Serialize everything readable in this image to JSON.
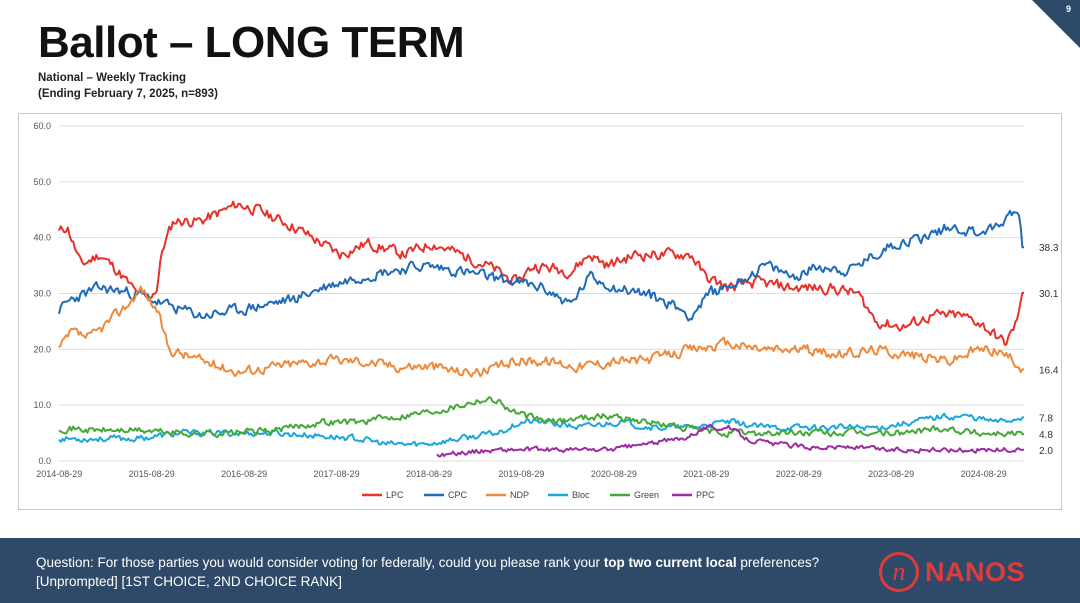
{
  "slide": {
    "title": "Ballot – LONG TERM",
    "subtitle_line1": "National – Weekly Tracking",
    "subtitle_line2": "(Ending February 7, 2025, n=893)",
    "page_number": "9"
  },
  "footer": {
    "question_pre": "Question: For those parties you would consider voting for federally, could you please rank your ",
    "question_bold": "top two current local",
    "question_post": " preferences? [Unprompted] [1ST CHOICE, 2ND CHOICE RANK]",
    "logo_mark": "n",
    "logo_text": "NANOS"
  },
  "colors": {
    "LPC": "#e8312a",
    "CPC": "#1f6bb8",
    "NDP": "#ee8a3c",
    "Bloc": "#1aa7de",
    "Green": "#47a83a",
    "PPC": "#9b2da0",
    "grid": "#dddddd",
    "footer_bg": "#2f4a69",
    "brand_red": "#e03a3a"
  },
  "chart_data": {
    "type": "line",
    "title": "",
    "xlabel": "",
    "ylabel": "",
    "ylim": [
      0,
      60
    ],
    "yticks": [
      "0.0",
      "10.0",
      "20.0",
      "30.0",
      "40.0",
      "50.0",
      "60.0"
    ],
    "x_start_year": 2014.66,
    "x_end_year": 2025.1,
    "xticks": [
      "2014-08-29",
      "2015-08-29",
      "2016-08-29",
      "2017-08-29",
      "2018-08-29",
      "2019-08-29",
      "2020-08-29",
      "2021-08-29",
      "2022-08-29",
      "2023-08-29",
      "2024-08-29"
    ],
    "legend": [
      "LPC",
      "CPC",
      "NDP",
      "Bloc",
      "Green",
      "PPC"
    ],
    "end_labels": [
      {
        "series": "CPC",
        "value": 38.3,
        "label": "38.3"
      },
      {
        "series": "LPC",
        "value": 30.1,
        "label": "30.1"
      },
      {
        "series": "NDP",
        "value": 16.4,
        "label": "16.4"
      },
      {
        "series": "Bloc",
        "value": 7.8,
        "label": "7.8"
      },
      {
        "series": "Green",
        "value": 4.8,
        "label": "4.8"
      },
      {
        "series": "PPC",
        "value": 2.0,
        "label": "2.0"
      }
    ],
    "series": [
      {
        "name": "LPC",
        "noise": 1.6,
        "seed": 11,
        "points": [
          [
            2014.66,
            41
          ],
          [
            2014.75,
            42
          ],
          [
            2014.9,
            35
          ],
          [
            2015.1,
            37
          ],
          [
            2015.3,
            34
          ],
          [
            2015.5,
            30
          ],
          [
            2015.62,
            29
          ],
          [
            2015.72,
            31
          ],
          [
            2015.78,
            38
          ],
          [
            2015.9,
            43
          ],
          [
            2016.2,
            43
          ],
          [
            2016.6,
            46
          ],
          [
            2016.8,
            45
          ],
          [
            2017.2,
            42
          ],
          [
            2017.5,
            39
          ],
          [
            2017.7,
            37
          ],
          [
            2018.0,
            39
          ],
          [
            2018.4,
            37
          ],
          [
            2018.7,
            39
          ],
          [
            2019.0,
            37
          ],
          [
            2019.3,
            35
          ],
          [
            2019.6,
            32
          ],
          [
            2019.8,
            35
          ],
          [
            2020.2,
            34
          ],
          [
            2020.4,
            37
          ],
          [
            2020.6,
            35
          ],
          [
            2020.9,
            37
          ],
          [
            2021.2,
            37
          ],
          [
            2021.5,
            37
          ],
          [
            2021.65,
            33
          ],
          [
            2021.9,
            31
          ],
          [
            2022.2,
            32
          ],
          [
            2022.6,
            31
          ],
          [
            2023.0,
            31
          ],
          [
            2023.3,
            30
          ],
          [
            2023.5,
            25
          ],
          [
            2023.8,
            24
          ],
          [
            2024.1,
            26
          ],
          [
            2024.4,
            26
          ],
          [
            2024.6,
            25
          ],
          [
            2024.75,
            23
          ],
          [
            2024.9,
            21
          ],
          [
            2025.0,
            24
          ],
          [
            2025.1,
            30.1
          ]
        ]
      },
      {
        "name": "CPC",
        "noise": 1.6,
        "seed": 23,
        "points": [
          [
            2014.66,
            27
          ],
          [
            2014.8,
            29
          ],
          [
            2015.1,
            31
          ],
          [
            2015.5,
            30
          ],
          [
            2015.8,
            28
          ],
          [
            2016.2,
            26
          ],
          [
            2016.6,
            27
          ],
          [
            2016.9,
            28
          ],
          [
            2017.2,
            29
          ],
          [
            2017.5,
            31
          ],
          [
            2017.9,
            33
          ],
          [
            2018.2,
            34
          ],
          [
            2018.6,
            35
          ],
          [
            2019.0,
            34
          ],
          [
            2019.3,
            33
          ],
          [
            2019.6,
            32
          ],
          [
            2019.9,
            31
          ],
          [
            2020.2,
            28
          ],
          [
            2020.4,
            33
          ],
          [
            2020.7,
            31
          ],
          [
            2021.0,
            30
          ],
          [
            2021.3,
            28
          ],
          [
            2021.5,
            26
          ],
          [
            2021.7,
            30
          ],
          [
            2022.0,
            32
          ],
          [
            2022.3,
            35
          ],
          [
            2022.6,
            33
          ],
          [
            2022.9,
            35
          ],
          [
            2023.2,
            34
          ],
          [
            2023.5,
            37
          ],
          [
            2023.7,
            39
          ],
          [
            2024.0,
            40
          ],
          [
            2024.3,
            42
          ],
          [
            2024.6,
            41
          ],
          [
            2024.85,
            42
          ],
          [
            2024.95,
            45
          ],
          [
            2025.05,
            44
          ],
          [
            2025.1,
            38.3
          ]
        ]
      },
      {
        "name": "NDP",
        "noise": 1.5,
        "seed": 37,
        "points": [
          [
            2014.66,
            20
          ],
          [
            2014.8,
            23
          ],
          [
            2015.0,
            22
          ],
          [
            2015.2,
            25
          ],
          [
            2015.4,
            28
          ],
          [
            2015.55,
            31
          ],
          [
            2015.72,
            27
          ],
          [
            2015.85,
            20
          ],
          [
            2016.2,
            18
          ],
          [
            2016.6,
            16
          ],
          [
            2017.0,
            17
          ],
          [
            2017.5,
            18
          ],
          [
            2017.9,
            18
          ],
          [
            2018.3,
            17
          ],
          [
            2018.7,
            17
          ],
          [
            2019.0,
            16
          ],
          [
            2019.3,
            16
          ],
          [
            2019.6,
            18
          ],
          [
            2019.9,
            18
          ],
          [
            2020.3,
            17
          ],
          [
            2020.7,
            18
          ],
          [
            2021.0,
            18
          ],
          [
            2021.5,
            20
          ],
          [
            2021.9,
            21
          ],
          [
            2022.3,
            20
          ],
          [
            2022.7,
            20
          ],
          [
            2023.1,
            19
          ],
          [
            2023.5,
            20
          ],
          [
            2023.9,
            19
          ],
          [
            2024.3,
            18
          ],
          [
            2024.6,
            20
          ],
          [
            2024.8,
            20
          ],
          [
            2025.0,
            18
          ],
          [
            2025.1,
            16.4
          ]
        ]
      },
      {
        "name": "Bloc",
        "noise": 0.9,
        "seed": 53,
        "points": [
          [
            2014.66,
            4
          ],
          [
            2015.0,
            4
          ],
          [
            2015.5,
            4
          ],
          [
            2016.0,
            5
          ],
          [
            2016.5,
            5
          ],
          [
            2017.0,
            5
          ],
          [
            2017.5,
            4.5
          ],
          [
            2017.9,
            4
          ],
          [
            2018.2,
            3
          ],
          [
            2018.6,
            3
          ],
          [
            2019.0,
            4
          ],
          [
            2019.4,
            5
          ],
          [
            2019.65,
            7
          ],
          [
            2019.9,
            7
          ],
          [
            2020.3,
            6
          ],
          [
            2020.7,
            7
          ],
          [
            2021.1,
            6
          ],
          [
            2021.5,
            6
          ],
          [
            2021.9,
            7
          ],
          [
            2022.3,
            6
          ],
          [
            2022.7,
            6
          ],
          [
            2023.1,
            6
          ],
          [
            2023.5,
            6
          ],
          [
            2023.9,
            7
          ],
          [
            2024.2,
            8
          ],
          [
            2024.5,
            8
          ],
          [
            2024.8,
            7
          ],
          [
            2025.1,
            7.8
          ]
        ]
      },
      {
        "name": "Green",
        "noise": 1.0,
        "seed": 71,
        "points": [
          [
            2014.66,
            6
          ],
          [
            2015.0,
            5.5
          ],
          [
            2015.5,
            5.5
          ],
          [
            2016.0,
            5
          ],
          [
            2016.5,
            5
          ],
          [
            2017.0,
            5.5
          ],
          [
            2017.5,
            7
          ],
          [
            2017.9,
            7
          ],
          [
            2018.3,
            8
          ],
          [
            2018.7,
            9
          ],
          [
            2019.0,
            10
          ],
          [
            2019.2,
            11
          ],
          [
            2019.4,
            11
          ],
          [
            2019.55,
            9
          ],
          [
            2019.7,
            8
          ],
          [
            2020.0,
            7
          ],
          [
            2020.4,
            8
          ],
          [
            2020.7,
            8
          ],
          [
            2021.0,
            7
          ],
          [
            2021.4,
            6
          ],
          [
            2021.8,
            5
          ],
          [
            2022.2,
            5
          ],
          [
            2022.6,
            5
          ],
          [
            2023.0,
            5
          ],
          [
            2023.4,
            5
          ],
          [
            2023.8,
            5
          ],
          [
            2024.2,
            6
          ],
          [
            2024.6,
            5
          ],
          [
            2024.9,
            5
          ],
          [
            2025.1,
            4.8
          ]
        ]
      },
      {
        "name": "PPC",
        "noise": 0.7,
        "seed": 89,
        "points": [
          [
            2018.75,
            1
          ],
          [
            2019.0,
            1.5
          ],
          [
            2019.4,
            2
          ],
          [
            2019.8,
            2
          ],
          [
            2020.2,
            2
          ],
          [
            2020.6,
            2
          ],
          [
            2021.0,
            3
          ],
          [
            2021.4,
            4
          ],
          [
            2021.65,
            6
          ],
          [
            2021.9,
            6
          ],
          [
            2022.1,
            4
          ],
          [
            2022.4,
            3
          ],
          [
            2022.8,
            2.5
          ],
          [
            2023.2,
            2.5
          ],
          [
            2023.6,
            2
          ],
          [
            2024.0,
            2
          ],
          [
            2024.4,
            2
          ],
          [
            2024.8,
            2
          ],
          [
            2025.1,
            2.0
          ]
        ]
      }
    ]
  }
}
